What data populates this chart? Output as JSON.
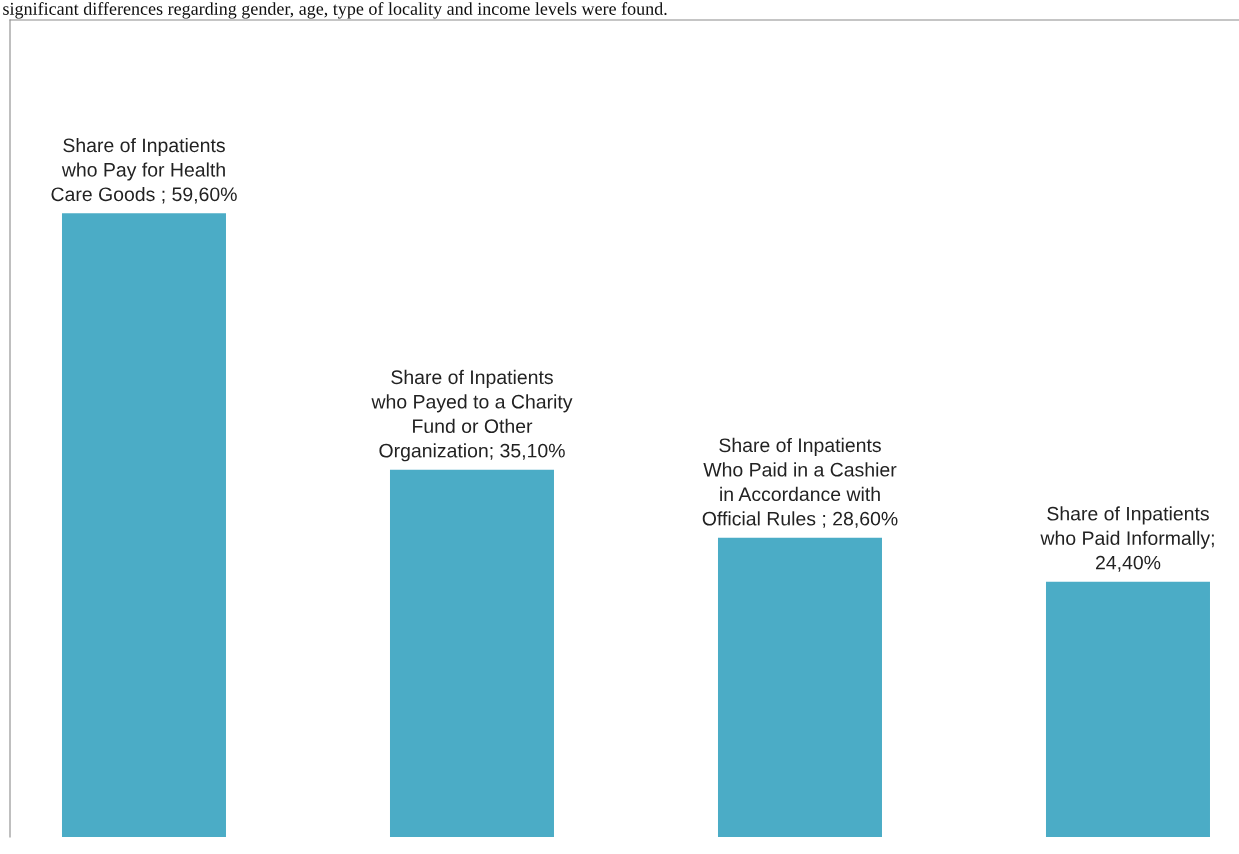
{
  "chart_data": {
    "type": "bar",
    "categories": [
      null,
      null,
      null,
      null
    ],
    "values": [
      59.6,
      35.1,
      28.6,
      24.4
    ],
    "color": "#4bacc6",
    "value_labels": [
      "Share of Inpatients\nwho Pay for Health\nCare Goods ; 59,60%",
      "Share of Inpatients\nwho Payed to a Charity\nFund or Other\nOrganization; 35,10%",
      "Share of Inpatients\nWho Paid in a Cashier\nin Accordance with\nOfficial Rules ; 28,60%",
      "Share of Inpatients\nwho Paid Informally;\n24,40%"
    ],
    "annotations": [
      "significant differences regarding gender, age, type of locality and income levels were found."
    ]
  }
}
